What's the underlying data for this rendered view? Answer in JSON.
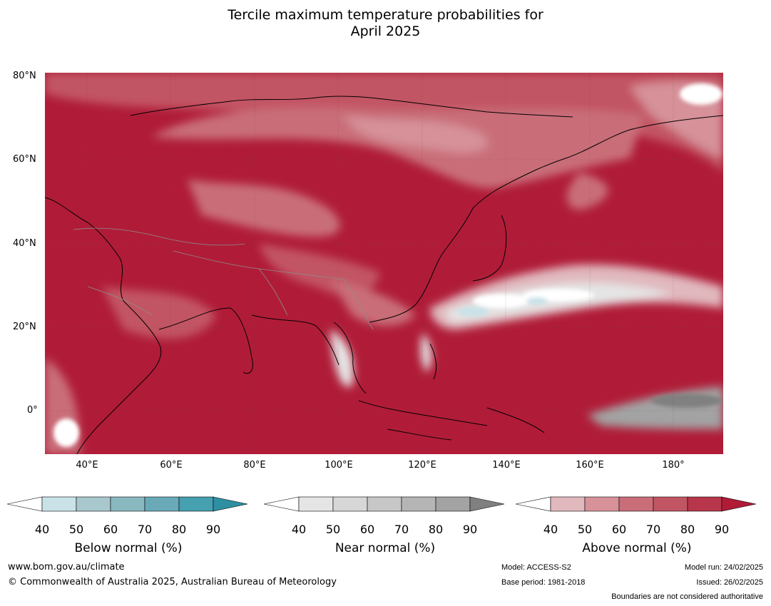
{
  "title": {
    "line1": "Tercile maximum temperature probabilities for",
    "line2": "April 2025"
  },
  "map": {
    "lat_labels": [
      "80°N",
      "60°N",
      "40°N",
      "20°N",
      "0°"
    ],
    "lon_labels": [
      "40°E",
      "60°E",
      "80°E",
      "100°E",
      "120°E",
      "140°E",
      "160°E",
      "180°"
    ],
    "extent": {
      "lon_min": 30,
      "lon_max": 192,
      "lat_min": -10,
      "lat_max": 81
    }
  },
  "colorbars": [
    {
      "title": "Below normal (%)",
      "ticks": [
        "40",
        "50",
        "60",
        "70",
        "80",
        "90"
      ],
      "colors": [
        "#ffffff",
        "#c9e2e8",
        "#a8c8cd",
        "#8ab8c0",
        "#6aaab8",
        "#45a0b0",
        "#2e8fa2"
      ]
    },
    {
      "title": "Near normal (%)",
      "ticks": [
        "40",
        "50",
        "60",
        "70",
        "80",
        "90"
      ],
      "colors": [
        "#ffffff",
        "#e5e5e5",
        "#d7d7d7",
        "#c7c7c7",
        "#b5b5b5",
        "#a3a3a3",
        "#808080"
      ]
    },
    {
      "title": "Above normal (%)",
      "ticks": [
        "40",
        "50",
        "60",
        "70",
        "80",
        "90"
      ],
      "colors": [
        "#ffffff",
        "#e0b8bd",
        "#d69199",
        "#c96e79",
        "#c25563",
        "#b8364a",
        "#b01c38"
      ]
    }
  ],
  "footer": {
    "website": "www.bom.gov.au/climate",
    "copyright": "© Commonwealth of Australia 2025, Australian Bureau of Meteorology",
    "model": "Model: ACCESS-S2",
    "base_period": "Base period: 1981-2018",
    "model_run": "Model run: 24/02/2025",
    "issued": "Issued: 26/02/2025",
    "disclaimer": "Boundaries are not considered authoritative"
  }
}
